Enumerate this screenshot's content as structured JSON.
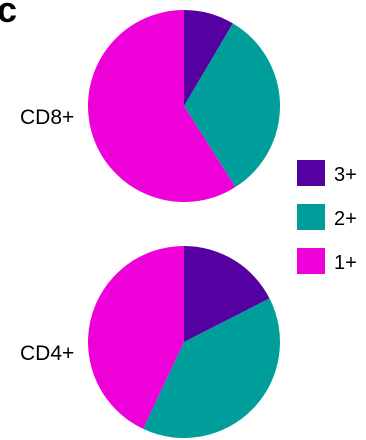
{
  "panel_letter": "c",
  "chart_data": [
    {
      "type": "pie",
      "label": "CD8+",
      "slices": [
        {
          "category": "3+",
          "value": 8.5
        },
        {
          "category": "2+",
          "value": 32.5
        },
        {
          "category": "1+",
          "value": 59.0
        }
      ]
    },
    {
      "type": "pie",
      "label": "CD4+",
      "slices": [
        {
          "category": "3+",
          "value": 17.5
        },
        {
          "category": "2+",
          "value": 39.5
        },
        {
          "category": "1+",
          "value": 43.0
        }
      ]
    }
  ],
  "legend": [
    {
      "label": "3+",
      "color": "#5500a0"
    },
    {
      "label": "2+",
      "color": "#009e9a"
    },
    {
      "label": "1+",
      "color": "#ee00d8"
    }
  ]
}
